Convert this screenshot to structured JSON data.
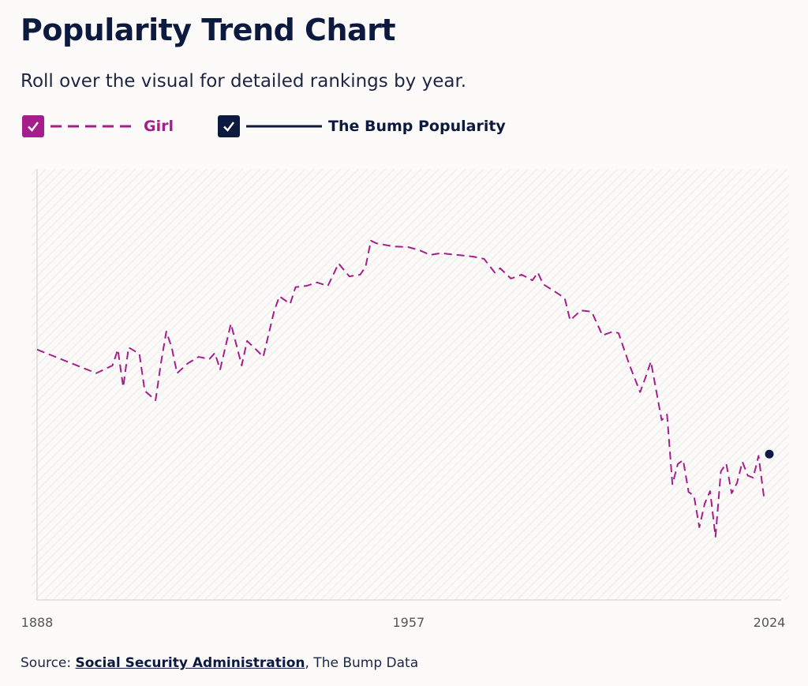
{
  "title": "Popularity Trend Chart",
  "subtitle": "Roll over the visual for detailed rankings by year.",
  "legend": [
    {
      "label": "Girl",
      "color": "#a61e8c",
      "style": "dashed",
      "checked": true
    },
    {
      "label": "The Bump Popularity",
      "color": "#0d1a3f",
      "style": "solid",
      "checked": true
    }
  ],
  "source": {
    "prefix": "Source: ",
    "link": "Social Security Administration",
    "suffix": ", The Bump Data"
  },
  "chart_data": {
    "type": "line",
    "title": "",
    "xlabel": "",
    "ylabel": "",
    "xlim": [
      1888,
      2024
    ],
    "ylim": [
      0,
      100
    ],
    "x_ticks": [
      "1888",
      "1957",
      "2024"
    ],
    "grid": false,
    "background": "diagonal-hatch",
    "series": [
      {
        "name": "Girl",
        "color": "#a61e8c",
        "style": "dashed",
        "points": [
          [
            1888,
            58.2
          ],
          [
            1899,
            52.7
          ],
          [
            1902,
            54.5
          ],
          [
            1903,
            58.2
          ],
          [
            1904,
            49.5
          ],
          [
            1905,
            58.7
          ],
          [
            1907,
            57.2
          ],
          [
            1908,
            48.6
          ],
          [
            1910,
            46.4
          ],
          [
            1911,
            55
          ],
          [
            1912,
            62.4
          ],
          [
            1913,
            58.7
          ],
          [
            1914,
            52.7
          ],
          [
            1916,
            55
          ],
          [
            1918,
            56.5
          ],
          [
            1920,
            56
          ],
          [
            1921,
            57.4
          ],
          [
            1922,
            53.6
          ],
          [
            1924,
            64.2
          ],
          [
            1926,
            54.5
          ],
          [
            1927,
            60.2
          ],
          [
            1929,
            57.8
          ],
          [
            1930,
            56.5
          ],
          [
            1932,
            67
          ],
          [
            1933,
            70.6
          ],
          [
            1935,
            68.8
          ],
          [
            1936,
            72.7
          ],
          [
            1938,
            73
          ],
          [
            1940,
            73.8
          ],
          [
            1942,
            73
          ],
          [
            1944,
            78.2
          ],
          [
            1946,
            75.2
          ],
          [
            1948,
            75.6
          ],
          [
            1949,
            77.4
          ],
          [
            1950,
            83.5
          ],
          [
            1951,
            82.9
          ],
          [
            1954,
            82.2
          ],
          [
            1957,
            82
          ],
          [
            1959,
            81.3
          ],
          [
            1961,
            80.2
          ],
          [
            1963,
            80.6
          ],
          [
            1966,
            80.2
          ],
          [
            1969,
            79.8
          ],
          [
            1971,
            79.3
          ],
          [
            1973,
            76.1
          ],
          [
            1974,
            77.1
          ],
          [
            1976,
            74.7
          ],
          [
            1978,
            75.6
          ],
          [
            1980,
            74.3
          ],
          [
            1981,
            76.1
          ],
          [
            1982,
            73.4
          ],
          [
            1985,
            71
          ],
          [
            1986,
            70.1
          ],
          [
            1987,
            65
          ],
          [
            1989,
            67.3
          ],
          [
            1991,
            67
          ],
          [
            1993,
            61.5
          ],
          [
            1995,
            62.4
          ],
          [
            1996,
            62
          ],
          [
            1998,
            54.7
          ],
          [
            2000,
            48.3
          ],
          [
            2001,
            51.7
          ],
          [
            2002,
            55.4
          ],
          [
            2004,
            41.8
          ],
          [
            2005,
            43.1
          ],
          [
            2006,
            26.9
          ],
          [
            2007,
            31.6
          ],
          [
            2008,
            32.5
          ],
          [
            2009,
            25.1
          ],
          [
            2010,
            24.2
          ],
          [
            2011,
            16.9
          ],
          [
            2012,
            22.4
          ],
          [
            2013,
            25.3
          ],
          [
            2014,
            14.7
          ],
          [
            2015,
            29.9
          ],
          [
            2016,
            31.7
          ],
          [
            2017,
            24.8
          ],
          [
            2018,
            27.2
          ],
          [
            2019,
            32.1
          ],
          [
            2020,
            28.9
          ],
          [
            2021,
            28.4
          ],
          [
            2022,
            33.5
          ],
          [
            2023,
            23.9
          ]
        ]
      },
      {
        "name": "The Bump Popularity",
        "color": "#0d1a3f",
        "style": "solid",
        "points": [
          [
            2024,
            33.9
          ]
        ]
      }
    ]
  }
}
